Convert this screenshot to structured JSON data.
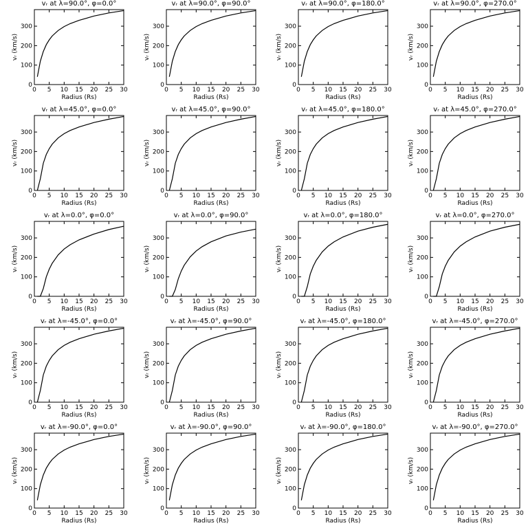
{
  "chart_data": [
    {
      "type": "line",
      "title": "vᵣ at λ=90.0°, φ=0.0°",
      "x_label": "Radius (Rs)",
      "y_label": "vᵣ (km/s)",
      "color": "#000000",
      "x": [
        1,
        2,
        3,
        4,
        5,
        6,
        8,
        10,
        12,
        15,
        20,
        25,
        30
      ],
      "values": [
        40,
        120,
        170,
        205,
        230,
        250,
        278,
        298,
        313,
        330,
        352,
        368,
        380
      ],
      "xlim": [
        0,
        30
      ],
      "ylim": [
        0,
        385
      ],
      "xticks": [
        0,
        5,
        10,
        15,
        20,
        25,
        30
      ],
      "yticks": [
        0,
        100,
        200,
        300
      ]
    },
    {
      "type": "line",
      "title": "vᵣ at λ=90.0°, φ=90.0°",
      "x_label": "Radius (Rs)",
      "y_label": "vᵣ (km/s)",
      "color": "#000000",
      "x": [
        1,
        2,
        3,
        4,
        5,
        6,
        8,
        10,
        12,
        15,
        20,
        25,
        30
      ],
      "values": [
        40,
        120,
        170,
        205,
        230,
        250,
        278,
        298,
        313,
        330,
        352,
        368,
        380
      ],
      "xlim": [
        0,
        30
      ],
      "ylim": [
        0,
        385
      ],
      "xticks": [
        0,
        5,
        10,
        15,
        20,
        25,
        30
      ],
      "yticks": [
        0,
        100,
        200,
        300
      ]
    },
    {
      "type": "line",
      "title": "vᵣ at λ=90.0°, φ=180.0°",
      "x_label": "Radius (Rs)",
      "y_label": "vᵣ (km/s)",
      "color": "#000000",
      "x": [
        1,
        2,
        3,
        4,
        5,
        6,
        8,
        10,
        12,
        15,
        20,
        25,
        30
      ],
      "values": [
        40,
        120,
        170,
        205,
        230,
        250,
        278,
        298,
        313,
        330,
        352,
        368,
        380
      ],
      "xlim": [
        0,
        30
      ],
      "ylim": [
        0,
        385
      ],
      "xticks": [
        0,
        5,
        10,
        15,
        20,
        25,
        30
      ],
      "yticks": [
        0,
        100,
        200,
        300
      ]
    },
    {
      "type": "line",
      "title": "vᵣ at λ=90.0°, φ=270.0°",
      "x_label": "Radius (Rs)",
      "y_label": "vᵣ (km/s)",
      "color": "#000000",
      "x": [
        1,
        2,
        3,
        4,
        5,
        6,
        8,
        10,
        12,
        15,
        20,
        25,
        30
      ],
      "values": [
        40,
        120,
        170,
        205,
        230,
        250,
        278,
        298,
        313,
        330,
        352,
        368,
        380
      ],
      "xlim": [
        0,
        30
      ],
      "ylim": [
        0,
        385
      ],
      "xticks": [
        0,
        5,
        10,
        15,
        20,
        25,
        30
      ],
      "yticks": [
        0,
        100,
        200,
        300
      ]
    },
    {
      "type": "line",
      "title": "vᵣ at λ=45.0°, φ=0.0°",
      "x_label": "Radius (Rs)",
      "y_label": "vᵣ (km/s)",
      "color": "#000000",
      "x": [
        1,
        2,
        3,
        4,
        5,
        6,
        8,
        10,
        12,
        15,
        20,
        25,
        30
      ],
      "values": [
        0,
        60,
        140,
        185,
        215,
        238,
        270,
        292,
        308,
        326,
        349,
        366,
        380
      ],
      "xlim": [
        0,
        30
      ],
      "ylim": [
        0,
        385
      ],
      "xticks": [
        0,
        5,
        10,
        15,
        20,
        25,
        30
      ],
      "yticks": [
        0,
        100,
        200,
        300
      ]
    },
    {
      "type": "line",
      "title": "vᵣ at λ=45.0°, φ=90.0°",
      "x_label": "Radius (Rs)",
      "y_label": "vᵣ (km/s)",
      "color": "#000000",
      "x": [
        1,
        2,
        3,
        4,
        5,
        6,
        8,
        10,
        12,
        15,
        20,
        25,
        30
      ],
      "values": [
        0,
        60,
        140,
        185,
        215,
        238,
        270,
        292,
        308,
        326,
        349,
        366,
        380
      ],
      "xlim": [
        0,
        30
      ],
      "ylim": [
        0,
        385
      ],
      "xticks": [
        0,
        5,
        10,
        15,
        20,
        25,
        30
      ],
      "yticks": [
        0,
        100,
        200,
        300
      ]
    },
    {
      "type": "line",
      "title": "vᵣ at λ=45.0°, φ=180.0°",
      "x_label": "Radius (Rs)",
      "y_label": "vᵣ (km/s)",
      "color": "#000000",
      "x": [
        1,
        2,
        3,
        4,
        5,
        6,
        8,
        10,
        12,
        15,
        20,
        25,
        30
      ],
      "values": [
        0,
        60,
        140,
        185,
        215,
        238,
        270,
        292,
        308,
        326,
        349,
        366,
        380
      ],
      "xlim": [
        0,
        30
      ],
      "ylim": [
        0,
        385
      ],
      "xticks": [
        0,
        5,
        10,
        15,
        20,
        25,
        30
      ],
      "yticks": [
        0,
        100,
        200,
        300
      ]
    },
    {
      "type": "line",
      "title": "vᵣ at λ=45.0°, φ=270.0°",
      "x_label": "Radius (Rs)",
      "y_label": "vᵣ (km/s)",
      "color": "#000000",
      "x": [
        1,
        2,
        3,
        4,
        5,
        6,
        8,
        10,
        12,
        15,
        20,
        25,
        30
      ],
      "values": [
        0,
        60,
        140,
        185,
        215,
        238,
        270,
        292,
        308,
        326,
        349,
        366,
        380
      ],
      "xlim": [
        0,
        30
      ],
      "ylim": [
        0,
        385
      ],
      "xticks": [
        0,
        5,
        10,
        15,
        20,
        25,
        30
      ],
      "yticks": [
        0,
        100,
        200,
        300
      ]
    },
    {
      "type": "line",
      "title": "vᵣ at λ=0.0°, φ=0.0°",
      "x_label": "Radius (Rs)",
      "y_label": "vᵣ (km/s)",
      "color": "#000000",
      "x": [
        1,
        2,
        3,
        4,
        5,
        6,
        8,
        10,
        12,
        15,
        20,
        25,
        30
      ],
      "values": [
        0,
        0,
        40,
        100,
        140,
        170,
        213,
        243,
        265,
        290,
        320,
        343,
        360
      ],
      "xlim": [
        0,
        30
      ],
      "ylim": [
        0,
        385
      ],
      "xticks": [
        0,
        5,
        10,
        15,
        20,
        25,
        30
      ],
      "yticks": [
        0,
        100,
        200,
        300
      ]
    },
    {
      "type": "line",
      "title": "vᵣ at λ=0.0°, φ=90.0°",
      "x_label": "Radius (Rs)",
      "y_label": "vᵣ (km/s)",
      "color": "#000000",
      "x": [
        1,
        2,
        3,
        4,
        5,
        6,
        8,
        10,
        12,
        15,
        20,
        25,
        30
      ],
      "values": [
        0,
        0,
        35,
        90,
        130,
        160,
        203,
        233,
        255,
        280,
        310,
        330,
        345
      ],
      "xlim": [
        0,
        30
      ],
      "ylim": [
        0,
        385
      ],
      "xticks": [
        0,
        5,
        10,
        15,
        20,
        25,
        30
      ],
      "yticks": [
        0,
        100,
        200,
        300
      ]
    },
    {
      "type": "line",
      "title": "vᵣ at λ=0.0°, φ=180.0°",
      "x_label": "Radius (Rs)",
      "y_label": "vᵣ (km/s)",
      "color": "#000000",
      "x": [
        1,
        2,
        3,
        4,
        5,
        6,
        8,
        10,
        12,
        15,
        20,
        25,
        30
      ],
      "values": [
        0,
        0,
        50,
        115,
        155,
        185,
        228,
        258,
        280,
        305,
        335,
        355,
        370
      ],
      "xlim": [
        0,
        30
      ],
      "ylim": [
        0,
        385
      ],
      "xticks": [
        0,
        5,
        10,
        15,
        20,
        25,
        30
      ],
      "yticks": [
        0,
        100,
        200,
        300
      ]
    },
    {
      "type": "line",
      "title": "vᵣ at λ=0.0°, φ=270.0°",
      "x_label": "Radius (Rs)",
      "y_label": "vᵣ (km/s)",
      "color": "#000000",
      "x": [
        1,
        2,
        3,
        4,
        5,
        6,
        8,
        10,
        12,
        15,
        20,
        25,
        30
      ],
      "values": [
        0,
        0,
        50,
        115,
        155,
        185,
        228,
        258,
        280,
        305,
        335,
        355,
        370
      ],
      "xlim": [
        0,
        30
      ],
      "ylim": [
        0,
        385
      ],
      "xticks": [
        0,
        5,
        10,
        15,
        20,
        25,
        30
      ],
      "yticks": [
        0,
        100,
        200,
        300
      ]
    },
    {
      "type": "line",
      "title": "vᵣ at λ=-45.0°, φ=0.0°",
      "x_label": "Radius (Rs)",
      "y_label": "vᵣ (km/s)",
      "color": "#000000",
      "x": [
        1,
        2,
        3,
        4,
        5,
        6,
        8,
        10,
        12,
        15,
        20,
        25,
        30
      ],
      "values": [
        0,
        60,
        140,
        185,
        215,
        238,
        270,
        292,
        308,
        326,
        349,
        366,
        380
      ],
      "xlim": [
        0,
        30
      ],
      "ylim": [
        0,
        385
      ],
      "xticks": [
        0,
        5,
        10,
        15,
        20,
        25,
        30
      ],
      "yticks": [
        0,
        100,
        200,
        300
      ]
    },
    {
      "type": "line",
      "title": "vᵣ at λ=-45.0°, φ=90.0°",
      "x_label": "Radius (Rs)",
      "y_label": "vᵣ (km/s)",
      "color": "#000000",
      "x": [
        1,
        2,
        3,
        4,
        5,
        6,
        8,
        10,
        12,
        15,
        20,
        25,
        30
      ],
      "values": [
        0,
        60,
        140,
        185,
        215,
        238,
        270,
        292,
        308,
        326,
        349,
        366,
        380
      ],
      "xlim": [
        0,
        30
      ],
      "ylim": [
        0,
        385
      ],
      "xticks": [
        0,
        5,
        10,
        15,
        20,
        25,
        30
      ],
      "yticks": [
        0,
        100,
        200,
        300
      ]
    },
    {
      "type": "line",
      "title": "vᵣ at λ=-45.0°, φ=180.0°",
      "x_label": "Radius (Rs)",
      "y_label": "vᵣ (km/s)",
      "color": "#000000",
      "x": [
        1,
        2,
        3,
        4,
        5,
        6,
        8,
        10,
        12,
        15,
        20,
        25,
        30
      ],
      "values": [
        0,
        60,
        140,
        185,
        215,
        238,
        270,
        292,
        308,
        326,
        349,
        366,
        380
      ],
      "xlim": [
        0,
        30
      ],
      "ylim": [
        0,
        385
      ],
      "xticks": [
        0,
        5,
        10,
        15,
        20,
        25,
        30
      ],
      "yticks": [
        0,
        100,
        200,
        300
      ]
    },
    {
      "type": "line",
      "title": "vᵣ at λ=-45.0°, φ=270.0°",
      "x_label": "Radius (Rs)",
      "y_label": "vᵣ (km/s)",
      "color": "#000000",
      "x": [
        1,
        2,
        3,
        4,
        5,
        6,
        8,
        10,
        12,
        15,
        20,
        25,
        30
      ],
      "values": [
        0,
        60,
        140,
        185,
        215,
        238,
        270,
        292,
        308,
        326,
        349,
        366,
        380
      ],
      "xlim": [
        0,
        30
      ],
      "ylim": [
        0,
        385
      ],
      "xticks": [
        0,
        5,
        10,
        15,
        20,
        25,
        30
      ],
      "yticks": [
        0,
        100,
        200,
        300
      ]
    },
    {
      "type": "line",
      "title": "vᵣ at λ=-90.0°, φ=0.0°",
      "x_label": "Radius (Rs)",
      "y_label": "vᵣ (km/s)",
      "color": "#000000",
      "x": [
        1,
        2,
        3,
        4,
        5,
        6,
        8,
        10,
        12,
        15,
        20,
        25,
        30
      ],
      "values": [
        40,
        120,
        170,
        205,
        230,
        250,
        278,
        298,
        313,
        330,
        352,
        368,
        380
      ],
      "xlim": [
        0,
        30
      ],
      "ylim": [
        0,
        385
      ],
      "xticks": [
        0,
        5,
        10,
        15,
        20,
        25,
        30
      ],
      "yticks": [
        0,
        100,
        200,
        300
      ]
    },
    {
      "type": "line",
      "title": "vᵣ at λ=-90.0°, φ=90.0°",
      "x_label": "Radius (Rs)",
      "y_label": "vᵣ (km/s)",
      "color": "#000000",
      "x": [
        1,
        2,
        3,
        4,
        5,
        6,
        8,
        10,
        12,
        15,
        20,
        25,
        30
      ],
      "values": [
        40,
        120,
        170,
        205,
        230,
        250,
        278,
        298,
        313,
        330,
        352,
        368,
        380
      ],
      "xlim": [
        0,
        30
      ],
      "ylim": [
        0,
        385
      ],
      "xticks": [
        0,
        5,
        10,
        15,
        20,
        25,
        30
      ],
      "yticks": [
        0,
        100,
        200,
        300
      ]
    },
    {
      "type": "line",
      "title": "vᵣ at λ=-90.0°, φ=180.0°",
      "x_label": "Radius (Rs)",
      "y_label": "vᵣ (km/s)",
      "color": "#000000",
      "x": [
        1,
        2,
        3,
        4,
        5,
        6,
        8,
        10,
        12,
        15,
        20,
        25,
        30
      ],
      "values": [
        40,
        120,
        170,
        205,
        230,
        250,
        278,
        298,
        313,
        330,
        352,
        368,
        380
      ],
      "xlim": [
        0,
        30
      ],
      "ylim": [
        0,
        385
      ],
      "xticks": [
        0,
        5,
        10,
        15,
        20,
        25,
        30
      ],
      "yticks": [
        0,
        100,
        200,
        300
      ]
    },
    {
      "type": "line",
      "title": "vᵣ at λ=-90.0°, φ=270.0°",
      "x_label": "Radius (Rs)",
      "y_label": "vᵣ (km/s)",
      "color": "#000000",
      "x": [
        1,
        2,
        3,
        4,
        5,
        6,
        8,
        10,
        12,
        15,
        20,
        25,
        30
      ],
      "values": [
        40,
        120,
        170,
        205,
        230,
        250,
        278,
        298,
        313,
        330,
        352,
        368,
        380
      ],
      "xlim": [
        0,
        30
      ],
      "ylim": [
        0,
        385
      ],
      "xticks": [
        0,
        5,
        10,
        15,
        20,
        25,
        30
      ],
      "yticks": [
        0,
        100,
        200,
        300
      ]
    }
  ]
}
